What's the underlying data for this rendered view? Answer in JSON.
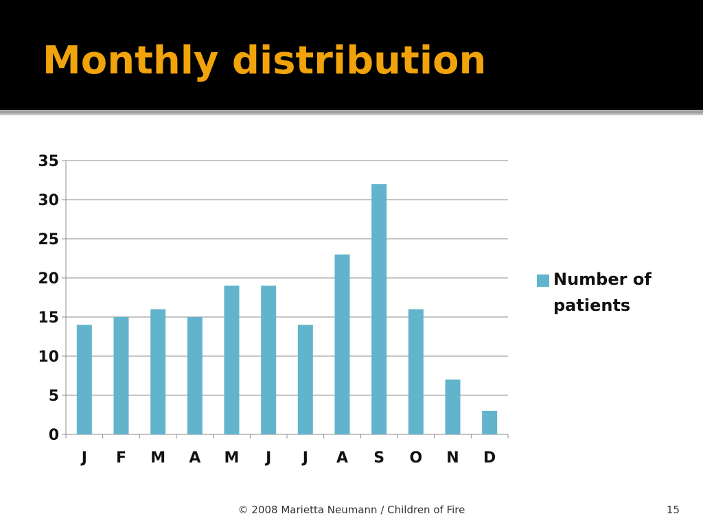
{
  "slide": {
    "title": "Monthly distribution",
    "footer": "© 2008 Marietta Neumann / Children of Fire",
    "page_number": "15"
  },
  "colors": {
    "title_bar": "#000000",
    "title_text": "#f0a30a",
    "bar": "#62b4cc",
    "grid": "#8c8c8c"
  },
  "chart_data": {
    "type": "bar",
    "categories": [
      "J",
      "F",
      "M",
      "A",
      "M",
      "J",
      "J",
      "A",
      "S",
      "O",
      "N",
      "D"
    ],
    "series": [
      {
        "name": "Number of patients",
        "values": [
          14,
          15,
          16,
          15,
          19,
          19,
          14,
          23,
          32,
          16,
          7,
          3
        ]
      }
    ],
    "title": "",
    "xlabel": "",
    "ylabel": "",
    "ylim": [
      0,
      35
    ],
    "yticks": [
      0,
      5,
      10,
      15,
      20,
      25,
      30,
      35
    ],
    "grid": true,
    "legend_position": "right"
  }
}
